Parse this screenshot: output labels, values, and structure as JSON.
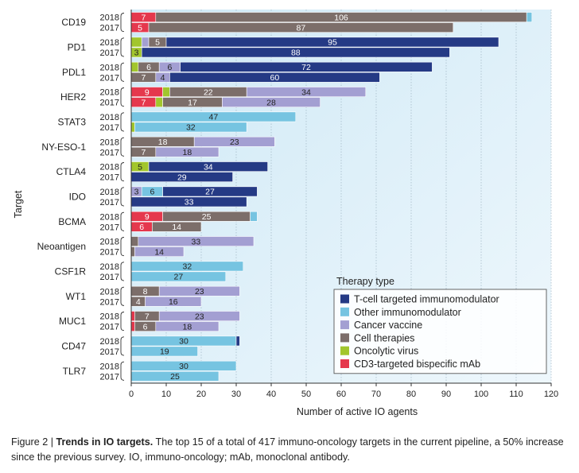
{
  "chart_data": {
    "type": "bar",
    "stacked": true,
    "orientation": "horizontal",
    "xlabel": "Number of active IO agents",
    "ylabel": "Target",
    "xlim": [
      0,
      120
    ],
    "xticks": [
      "0",
      "10",
      "20",
      "30",
      "40",
      "50",
      "60",
      "70",
      "80",
      "90",
      "100",
      "110",
      "120"
    ],
    "grid": true,
    "legend": {
      "title": "Therapy type",
      "position": "bottom-right"
    },
    "series": [
      {
        "name": "T-cell targeted immunomodulator",
        "color": "#253a85"
      },
      {
        "name": "Other immunomodulator",
        "color": "#76c4e1"
      },
      {
        "name": "Cancer vaccine",
        "color": "#a39fd2"
      },
      {
        "name": "Cell therapies",
        "color": "#7c6e6a"
      },
      {
        "name": "Oncolytic virus",
        "color": "#a2c62d"
      },
      {
        "name": "CD3-targeted bispecific mAb",
        "color": "#e5384d"
      }
    ],
    "targets": [
      {
        "name": "CD19",
        "bars": [
          {
            "year": "2018",
            "segments": [
              {
                "series": "CD3-targeted bispecific mAb",
                "value": 7,
                "label": "7"
              },
              {
                "series": "Cell therapies",
                "value": 106,
                "label": "106"
              },
              {
                "series": "Other immunomodulator",
                "value": 1.5,
                "label": ""
              }
            ]
          },
          {
            "year": "2017",
            "segments": [
              {
                "series": "CD3-targeted bispecific mAb",
                "value": 5,
                "label": "5"
              },
              {
                "series": "Cell therapies",
                "value": 87,
                "label": "87"
              }
            ]
          }
        ]
      },
      {
        "name": "PD1",
        "bars": [
          {
            "year": "2018",
            "segments": [
              {
                "series": "Oncolytic virus",
                "value": 3,
                "label": ""
              },
              {
                "series": "Cancer vaccine",
                "value": 2,
                "label": ""
              },
              {
                "series": "Cell therapies",
                "value": 5,
                "label": "5"
              },
              {
                "series": "T-cell targeted immunomodulator",
                "value": 95,
                "label": "95"
              }
            ]
          },
          {
            "year": "2017",
            "segments": [
              {
                "series": "Oncolytic virus",
                "value": 3,
                "label": "3"
              },
              {
                "series": "T-cell targeted immunomodulator",
                "value": 88,
                "label": "88"
              }
            ]
          }
        ]
      },
      {
        "name": "PDL1",
        "bars": [
          {
            "year": "2018",
            "segments": [
              {
                "series": "Oncolytic virus",
                "value": 2,
                "label": ""
              },
              {
                "series": "Cell therapies",
                "value": 6,
                "label": "6"
              },
              {
                "series": "Cancer vaccine",
                "value": 6,
                "label": "6"
              },
              {
                "series": "T-cell targeted immunomodulator",
                "value": 72,
                "label": "72"
              }
            ]
          },
          {
            "year": "2017",
            "segments": [
              {
                "series": "Cell therapies",
                "value": 7,
                "label": "7"
              },
              {
                "series": "Cancer vaccine",
                "value": 4,
                "label": "4"
              },
              {
                "series": "T-cell targeted immunomodulator",
                "value": 60,
                "label": "60"
              }
            ]
          }
        ]
      },
      {
        "name": "HER2",
        "bars": [
          {
            "year": "2018",
            "segments": [
              {
                "series": "CD3-targeted bispecific mAb",
                "value": 9,
                "label": "9"
              },
              {
                "series": "Oncolytic virus",
                "value": 2,
                "label": ""
              },
              {
                "series": "Cell therapies",
                "value": 22,
                "label": "22"
              },
              {
                "series": "Cancer vaccine",
                "value": 34,
                "label": "34"
              }
            ]
          },
          {
            "year": "2017",
            "segments": [
              {
                "series": "CD3-targeted bispecific mAb",
                "value": 7,
                "label": "7"
              },
              {
                "series": "Oncolytic virus",
                "value": 2,
                "label": ""
              },
              {
                "series": "Cell therapies",
                "value": 17,
                "label": "17"
              },
              {
                "series": "Cancer vaccine",
                "value": 28,
                "label": "28"
              }
            ]
          }
        ]
      },
      {
        "name": "STAT3",
        "bars": [
          {
            "year": "2018",
            "segments": [
              {
                "series": "Other immunomodulator",
                "value": 47,
                "label": "47"
              }
            ]
          },
          {
            "year": "2017",
            "segments": [
              {
                "series": "Oncolytic virus",
                "value": 1,
                "label": ""
              },
              {
                "series": "Other immunomodulator",
                "value": 32,
                "label": "32"
              }
            ]
          }
        ]
      },
      {
        "name": "NY-ESO-1",
        "bars": [
          {
            "year": "2018",
            "segments": [
              {
                "series": "Cell therapies",
                "value": 18,
                "label": "18"
              },
              {
                "series": "Cancer vaccine",
                "value": 23,
                "label": "23"
              }
            ]
          },
          {
            "year": "2017",
            "segments": [
              {
                "series": "Cell therapies",
                "value": 7,
                "label": "7"
              },
              {
                "series": "Cancer vaccine",
                "value": 18,
                "label": "18"
              }
            ]
          }
        ]
      },
      {
        "name": "CTLA4",
        "bars": [
          {
            "year": "2018",
            "segments": [
              {
                "series": "Oncolytic virus",
                "value": 5,
                "label": "5"
              },
              {
                "series": "T-cell targeted immunomodulator",
                "value": 34,
                "label": "34"
              }
            ]
          },
          {
            "year": "2017",
            "segments": [
              {
                "series": "T-cell targeted immunomodulator",
                "value": 29,
                "label": "29"
              }
            ]
          }
        ]
      },
      {
        "name": "IDO",
        "bars": [
          {
            "year": "2018",
            "segments": [
              {
                "series": "Cancer vaccine",
                "value": 3,
                "label": "3"
              },
              {
                "series": "Other immunomodulator",
                "value": 6,
                "label": "6"
              },
              {
                "series": "T-cell targeted immunomodulator",
                "value": 27,
                "label": "27"
              }
            ]
          },
          {
            "year": "2017",
            "segments": [
              {
                "series": "T-cell targeted immunomodulator",
                "value": 33,
                "label": "33"
              }
            ]
          }
        ]
      },
      {
        "name": "BCMA",
        "bars": [
          {
            "year": "2018",
            "segments": [
              {
                "series": "CD3-targeted bispecific mAb",
                "value": 9,
                "label": "9"
              },
              {
                "series": "Cell therapies",
                "value": 25,
                "label": "25"
              },
              {
                "series": "Other immunomodulator",
                "value": 2,
                "label": ""
              }
            ]
          },
          {
            "year": "2017",
            "segments": [
              {
                "series": "CD3-targeted bispecific mAb",
                "value": 6,
                "label": "6"
              },
              {
                "series": "Cell therapies",
                "value": 14,
                "label": "14"
              }
            ]
          }
        ]
      },
      {
        "name": "Neoantigen",
        "bars": [
          {
            "year": "2018",
            "segments": [
              {
                "series": "Cell therapies",
                "value": 2,
                "label": ""
              },
              {
                "series": "Cancer vaccine",
                "value": 33,
                "label": "33"
              }
            ]
          },
          {
            "year": "2017",
            "segments": [
              {
                "series": "Cell therapies",
                "value": 1,
                "label": ""
              },
              {
                "series": "Cancer vaccine",
                "value": 14,
                "label": "14"
              }
            ]
          }
        ]
      },
      {
        "name": "CSF1R",
        "bars": [
          {
            "year": "2018",
            "segments": [
              {
                "series": "Other immunomodulator",
                "value": 32,
                "label": "32"
              }
            ]
          },
          {
            "year": "2017",
            "segments": [
              {
                "series": "Other immunomodulator",
                "value": 27,
                "label": "27"
              }
            ]
          }
        ]
      },
      {
        "name": "WT1",
        "bars": [
          {
            "year": "2018",
            "segments": [
              {
                "series": "Cell therapies",
                "value": 8,
                "label": "8"
              },
              {
                "series": "Cancer vaccine",
                "value": 23,
                "label": "23"
              }
            ]
          },
          {
            "year": "2017",
            "segments": [
              {
                "series": "Cell therapies",
                "value": 4,
                "label": "4"
              },
              {
                "series": "Cancer vaccine",
                "value": 16,
                "label": "16"
              }
            ]
          }
        ]
      },
      {
        "name": "MUC1",
        "bars": [
          {
            "year": "2018",
            "segments": [
              {
                "series": "CD3-targeted bispecific mAb",
                "value": 1,
                "label": ""
              },
              {
                "series": "Cell therapies",
                "value": 7,
                "label": "7"
              },
              {
                "series": "Cancer vaccine",
                "value": 23,
                "label": "23"
              }
            ]
          },
          {
            "year": "2017",
            "segments": [
              {
                "series": "CD3-targeted bispecific mAb",
                "value": 1,
                "label": ""
              },
              {
                "series": "Cell therapies",
                "value": 6,
                "label": "6"
              },
              {
                "series": "Cancer vaccine",
                "value": 18,
                "label": "18"
              }
            ]
          }
        ]
      },
      {
        "name": "CD47",
        "bars": [
          {
            "year": "2018",
            "segments": [
              {
                "series": "Other immunomodulator",
                "value": 30,
                "label": "30"
              },
              {
                "series": "T-cell targeted immunomodulator",
                "value": 1,
                "label": ""
              }
            ]
          },
          {
            "year": "2017",
            "segments": [
              {
                "series": "Other immunomodulator",
                "value": 19,
                "label": "19"
              }
            ]
          }
        ]
      },
      {
        "name": "TLR7",
        "bars": [
          {
            "year": "2018",
            "segments": [
              {
                "series": "Other immunomodulator",
                "value": 30,
                "label": "30"
              }
            ]
          },
          {
            "year": "2017",
            "segments": [
              {
                "series": "Other immunomodulator",
                "value": 25,
                "label": "25"
              }
            ]
          }
        ]
      }
    ]
  },
  "caption": {
    "prefix": "Figure 2 | ",
    "bold": "Trends in IO targets.",
    "text": " The top 15 of a total of 417 immuno-oncology targets in the current pipeline, a 50% increase since the previous survey. IO, immuno-oncology; mAb, monoclonal antibody."
  }
}
